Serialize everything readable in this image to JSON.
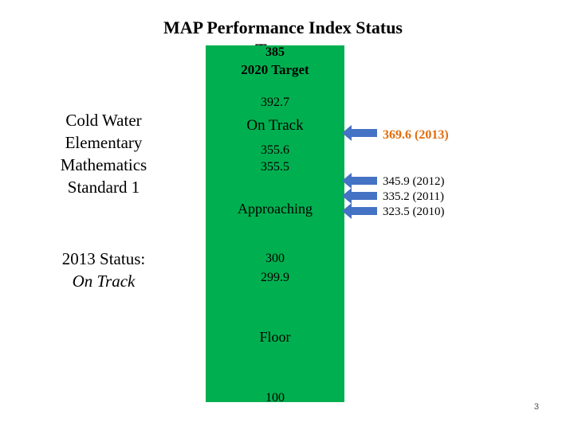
{
  "title": {
    "line1": "MAP Performance Index Status",
    "line2": "Targets"
  },
  "bar": {
    "overlap_value": "385",
    "target_label": "2020 Target",
    "target_value": "392.7",
    "on_track_label": "On Track",
    "on_track_min": "355.6",
    "approaching_max": "355.5",
    "approaching_label": "Approaching",
    "approaching_min": "300",
    "floor_max": "299.9",
    "floor_label": "Floor",
    "floor_min": "100",
    "color": "#00b050"
  },
  "school": {
    "line1": "Cold Water",
    "line2": "Elementary",
    "line3": "Mathematics",
    "line4": "Standard 1"
  },
  "status": {
    "label": "2013 Status:",
    "value": "On Track"
  },
  "annotations": [
    {
      "text": "369.6 (2013)",
      "color": "#e46c0a"
    },
    {
      "text": "345.9 (2012)"
    },
    {
      "text": "335.2 (2011)"
    },
    {
      "text": "323.5 (2010)"
    }
  ],
  "arrow_color": "#4472c4",
  "page_number": "3"
}
